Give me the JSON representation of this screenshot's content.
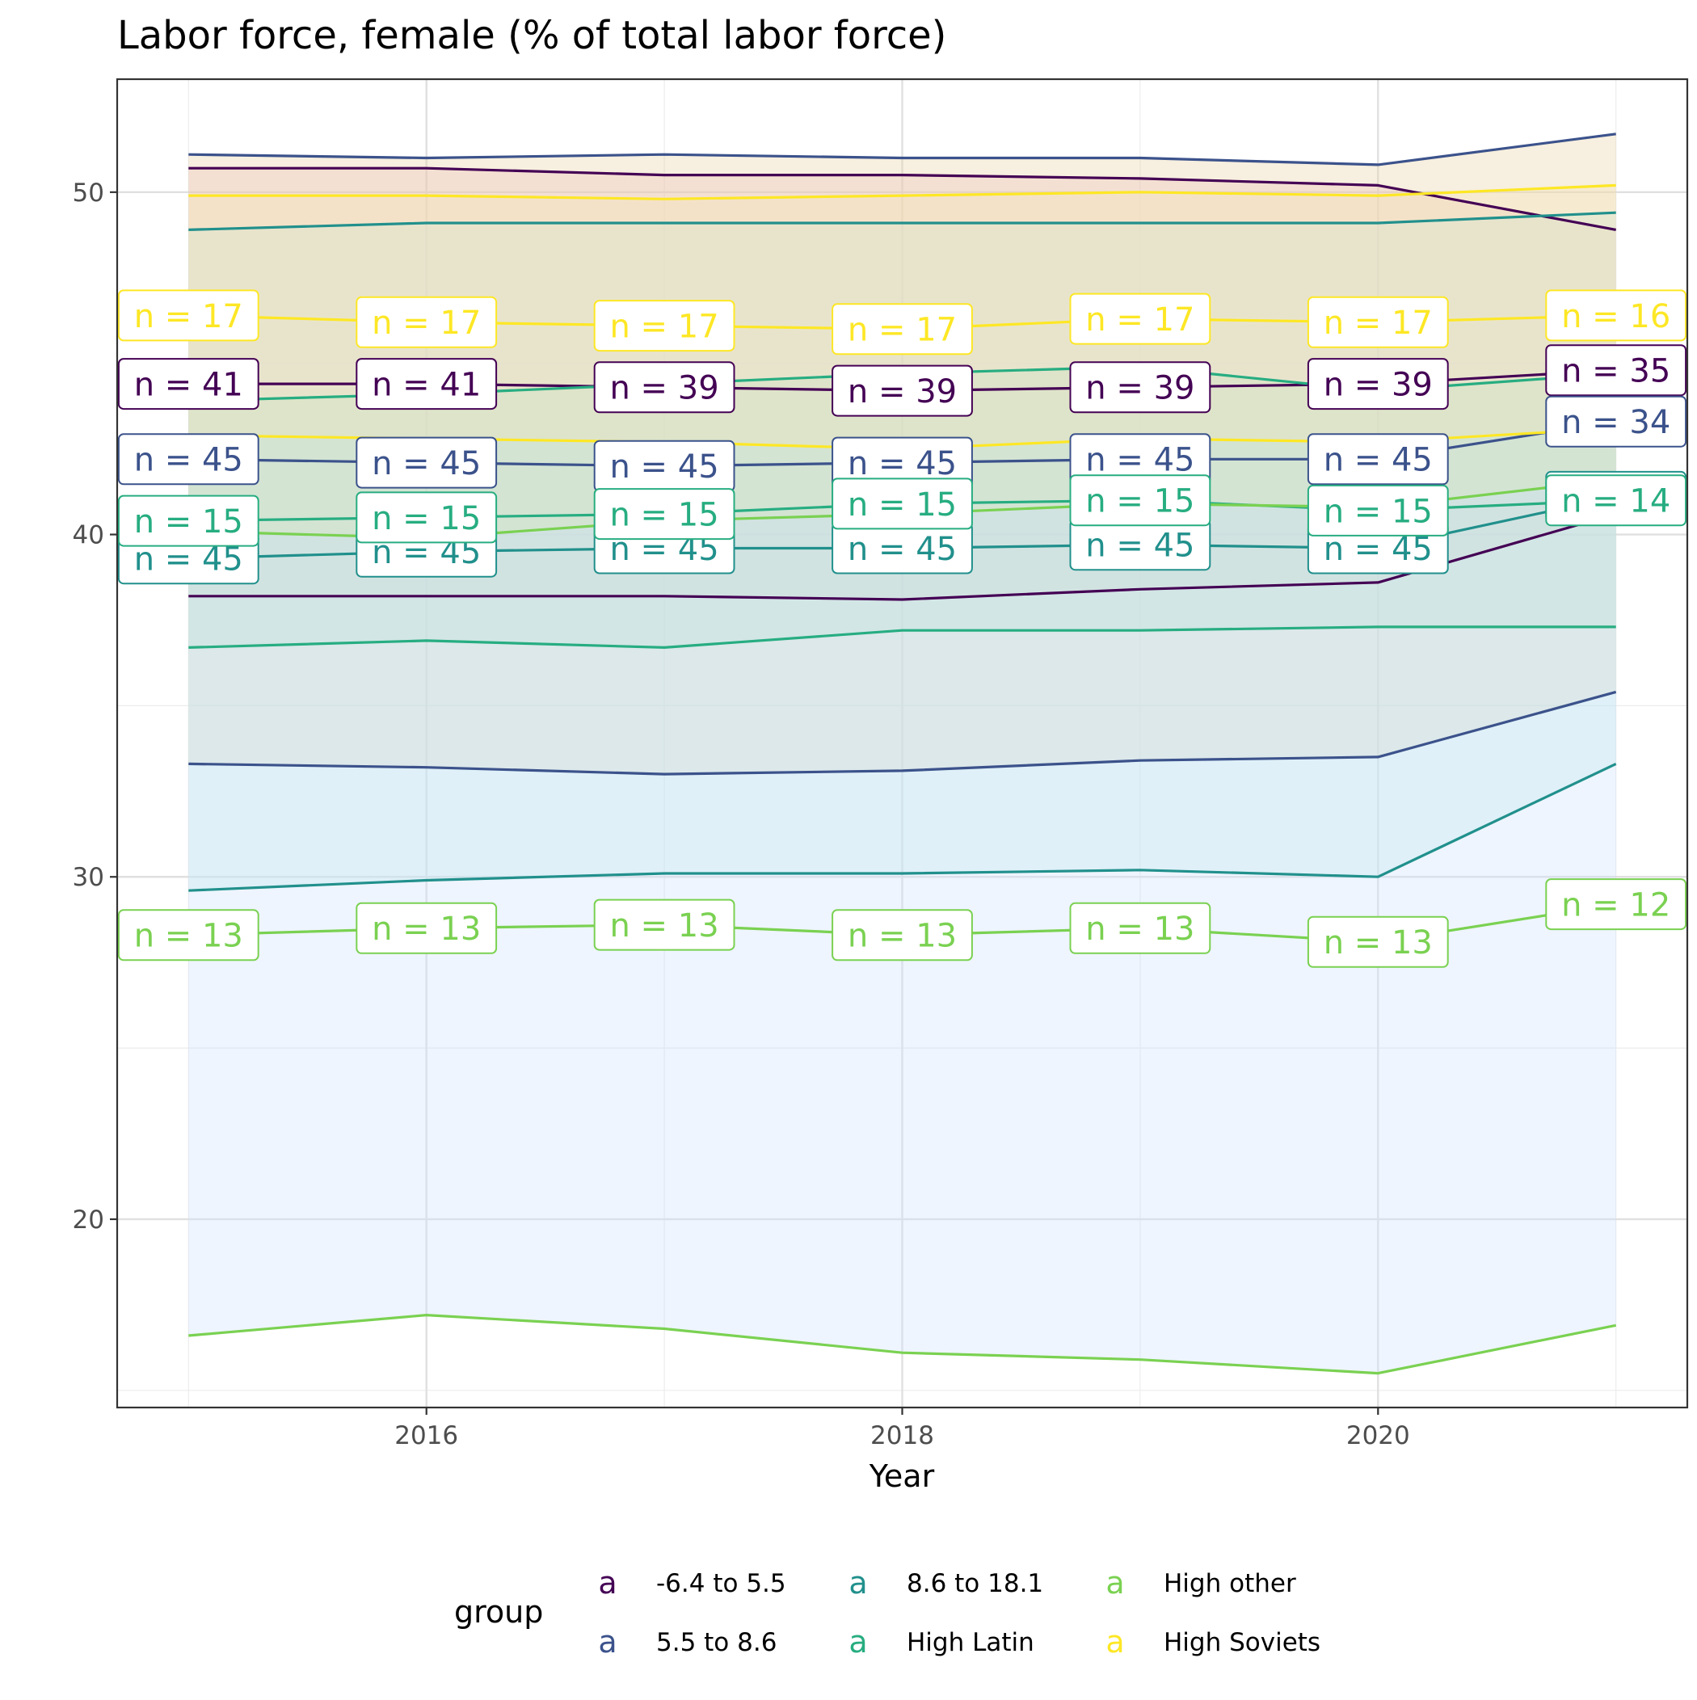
{
  "chart_data": {
    "type": "line",
    "title": "Labor force, female (% of total labor force)",
    "xlabel": "Year",
    "ylabel": "",
    "xlim": [
      2014.7,
      2021.3
    ],
    "ylim": [
      14.5,
      53.3
    ],
    "x_ticks": [
      2016,
      2018,
      2020
    ],
    "y_ticks": [
      20,
      30,
      40,
      50
    ],
    "grid": true,
    "legend_position": "bottom",
    "legend_title": "group",
    "legend_key_glyph": "a",
    "x": [
      2015,
      2016,
      2017,
      2018,
      2019,
      2020,
      2021
    ],
    "series": [
      {
        "name": "-6.4 to 5.5",
        "color": "#440154",
        "mean": [
          44.4,
          44.4,
          44.3,
          44.2,
          44.3,
          44.4,
          44.8
        ],
        "upper": [
          50.7,
          50.7,
          50.5,
          50.5,
          50.4,
          50.2,
          48.9
        ],
        "lower": [
          38.2,
          38.2,
          38.2,
          38.1,
          38.4,
          38.6,
          40.6
        ],
        "n": [
          41,
          41,
          39,
          39,
          39,
          39,
          35
        ]
      },
      {
        "name": "5.5 to 8.6",
        "color": "#3B528B",
        "mean": [
          42.2,
          42.1,
          42.0,
          42.1,
          42.2,
          42.2,
          43.3
        ],
        "upper": [
          51.1,
          51.0,
          51.1,
          51.0,
          51.0,
          50.8,
          51.7
        ],
        "lower": [
          33.3,
          33.2,
          33.0,
          33.1,
          33.4,
          33.5,
          35.4
        ],
        "n": [
          45,
          45,
          45,
          45,
          45,
          45,
          34
        ]
      },
      {
        "name": "8.6 to 18.1",
        "color": "#21908C",
        "mean": [
          39.3,
          39.5,
          39.6,
          39.6,
          39.7,
          39.6,
          41.1
        ],
        "upper": [
          48.9,
          49.1,
          49.1,
          49.1,
          49.1,
          49.1,
          49.4
        ],
        "lower": [
          29.6,
          29.9,
          30.1,
          30.1,
          30.2,
          30.0,
          33.3
        ],
        "n": [
          45,
          45,
          45,
          45,
          45,
          45,
          34
        ]
      },
      {
        "name": "High Latin",
        "color": "#27AD81",
        "mean": [
          40.4,
          40.5,
          40.6,
          40.9,
          41.0,
          40.7,
          41.0
        ],
        "upper": [
          43.9,
          44.1,
          44.4,
          44.7,
          44.9,
          44.2,
          44.7
        ],
        "lower": [
          36.7,
          36.9,
          36.7,
          37.2,
          37.2,
          37.3,
          37.3
        ],
        "n": [
          15,
          15,
          15,
          15,
          15,
          15,
          14
        ]
      },
      {
        "name": "High other",
        "color": "#7AD151",
        "mean": [
          28.3,
          28.5,
          28.6,
          28.3,
          28.5,
          28.1,
          29.2
        ],
        "upper": [
          40.1,
          39.9,
          40.4,
          40.6,
          40.9,
          40.8,
          41.6
        ],
        "lower": [
          16.6,
          17.2,
          16.8,
          16.1,
          15.9,
          15.5,
          16.9
        ],
        "n": [
          13,
          13,
          13,
          13,
          13,
          13,
          12
        ]
      },
      {
        "name": "High Soviets",
        "color": "#FDE725",
        "mean": [
          46.4,
          46.2,
          46.1,
          46.0,
          46.3,
          46.2,
          46.4
        ],
        "upper": [
          49.9,
          49.9,
          49.8,
          49.9,
          50.0,
          49.9,
          50.2
        ],
        "lower": [
          42.9,
          42.8,
          42.7,
          42.5,
          42.8,
          42.7,
          43.1
        ],
        "n": [
          17,
          17,
          17,
          17,
          17,
          17,
          16
        ]
      }
    ]
  }
}
